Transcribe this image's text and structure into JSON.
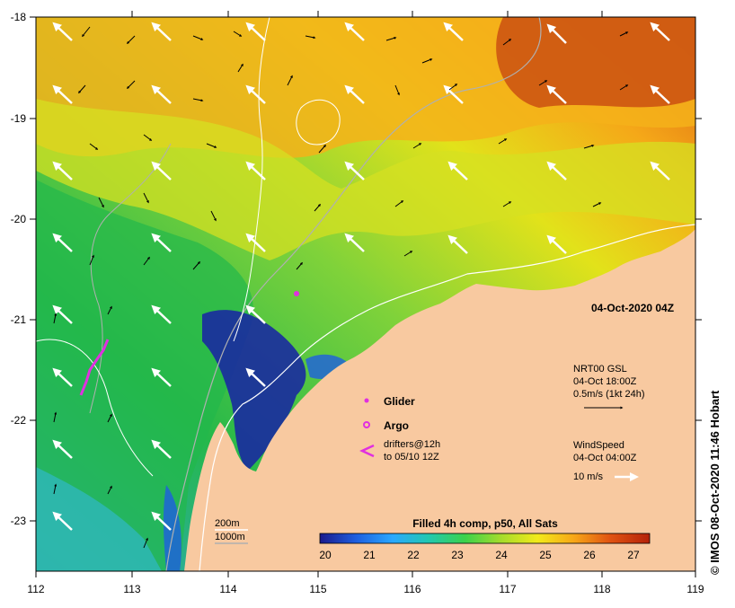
{
  "map": {
    "x_ticks": [
      "112",
      "113",
      "114",
      "115",
      "116",
      "117",
      "118",
      "119"
    ],
    "y_ticks": [
      "-18",
      "-19",
      "-20",
      "-21",
      "-22",
      "-23"
    ],
    "timestamp": "04-Oct-2020 04Z",
    "credit": "© IMOS 08-Oct-2020 11:46 Hobart",
    "colors": {
      "land": "#f8c9a0",
      "background": "#ffffff"
    }
  },
  "legend": {
    "glider": "Glider",
    "argo": "Argo",
    "drifters_line1": "drifters@12h",
    "drifters_line2": "to 05/10 12Z",
    "current_line1": "NRT00 GSL",
    "current_line2": "04-Oct 18:00Z",
    "current_line3": "0.5m/s (1kt 24h)",
    "wind_line1": "WindSpeed",
    "wind_line2": "04-Oct 04:00Z",
    "wind_line3": "10 m/s",
    "isobath_200": "200m",
    "isobath_1000": "1000m"
  },
  "colorbar": {
    "title": "Filled 4h comp, p50, All Sats",
    "ticks": [
      "20",
      "21",
      "22",
      "23",
      "24",
      "25",
      "26",
      "27"
    ],
    "stops": [
      "#1a1a8c",
      "#1e5fe0",
      "#2aa8ff",
      "#22c8b0",
      "#3bd24b",
      "#a6dc2c",
      "#f2ea1a",
      "#f7a718",
      "#e05312",
      "#b5220a"
    ]
  }
}
